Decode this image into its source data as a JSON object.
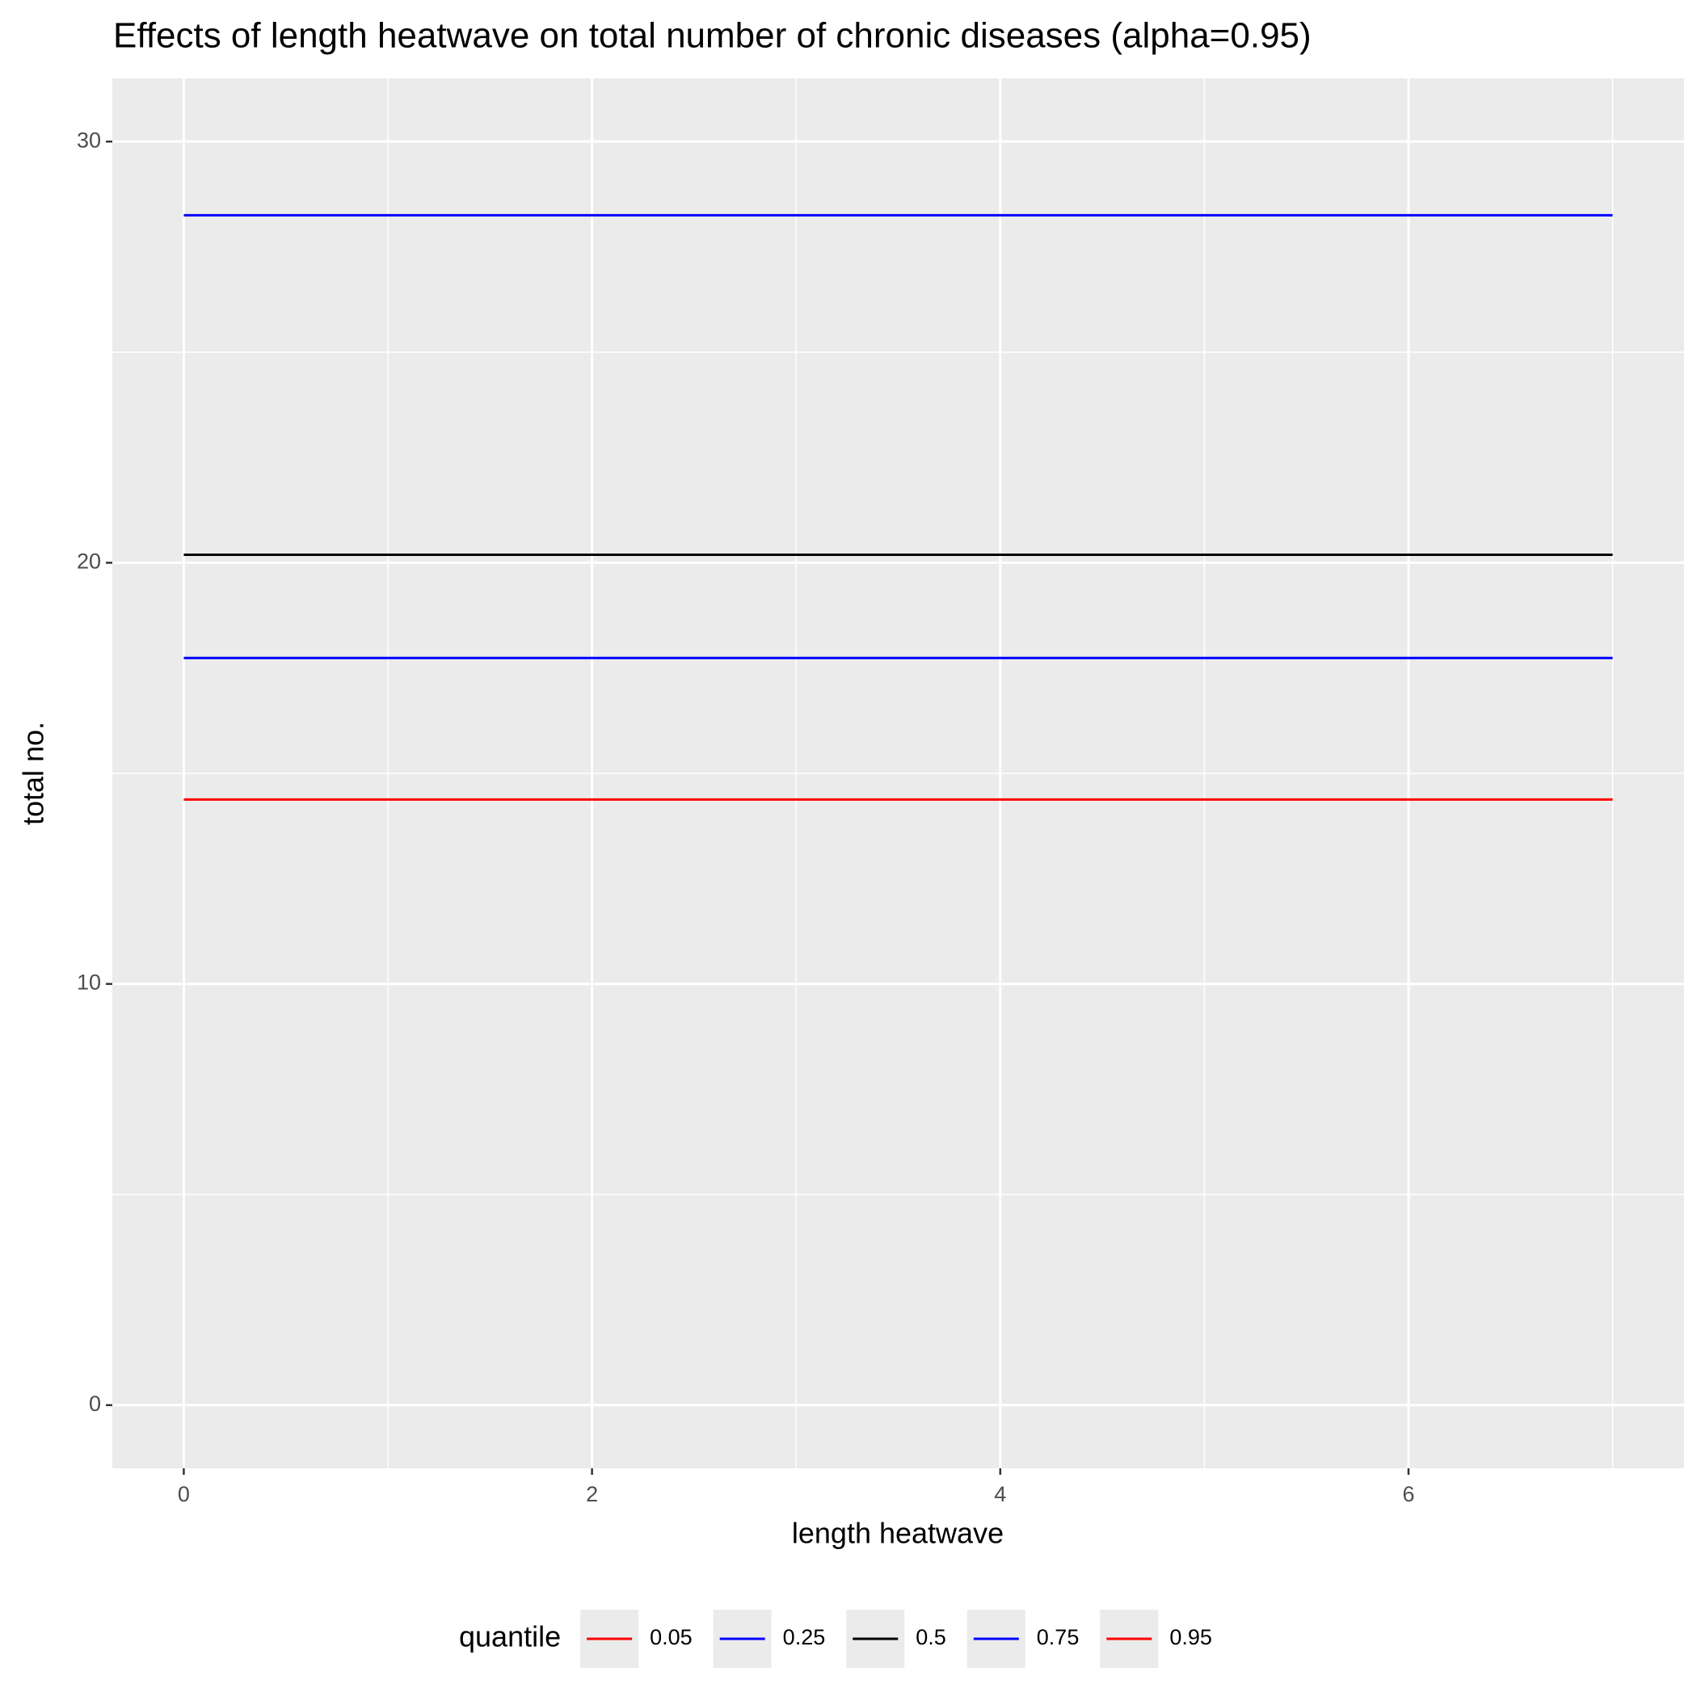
{
  "chart_data": {
    "type": "line",
    "title": "Effects of length heatwave on total number of chronic diseases (alpha=0.95)",
    "x_label": "length heatwave",
    "y_label": "total no.",
    "legend_title": "quantile",
    "legend_position": "bottom",
    "x": [
      0,
      1,
      2,
      3,
      4,
      5,
      6,
      7
    ],
    "series": [
      {
        "name": "0.05",
        "color": "#ff0000",
        "values": [
          14.38,
          14.38,
          14.38,
          14.38,
          14.38,
          14.38,
          14.38,
          14.38
        ]
      },
      {
        "name": "0.25",
        "color": "#0000ff",
        "values": [
          17.74,
          17.74,
          17.74,
          17.74,
          17.74,
          17.74,
          17.74,
          17.74
        ]
      },
      {
        "name": "0.5",
        "color": "#000000",
        "values": [
          20.19,
          20.19,
          20.19,
          20.19,
          20.19,
          20.19,
          20.19,
          20.19
        ]
      },
      {
        "name": "0.75",
        "color": "#0000ff",
        "values": [
          28.25,
          28.25,
          28.25,
          28.25,
          28.25,
          28.25,
          28.25,
          28.25
        ]
      },
      {
        "name": "0.95",
        "color": "#ff0000",
        "values": [
          null,
          null,
          null,
          null,
          null,
          null,
          null,
          null
        ]
      }
    ],
    "xlim": [
      -0.35,
      7.35
    ],
    "xticks": [
      0,
      2,
      4,
      6
    ],
    "ylim": [
      -1.5,
      31.5
    ],
    "yticks": [
      0,
      10,
      20,
      30
    ],
    "grid": true
  }
}
